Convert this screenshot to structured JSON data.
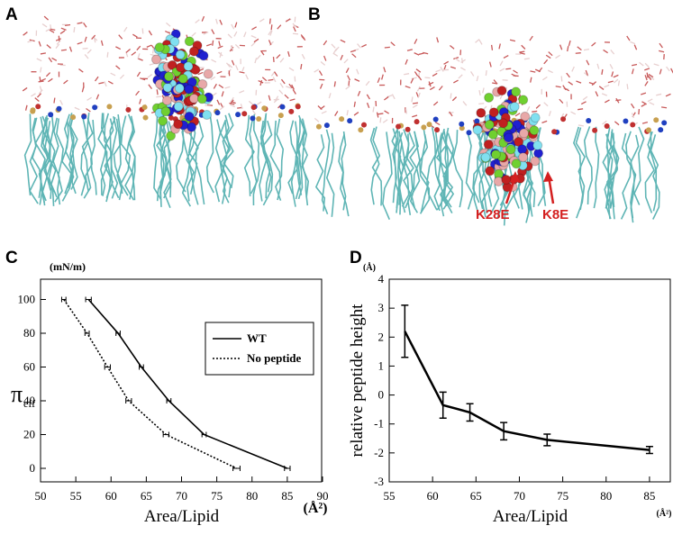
{
  "panels": {
    "a": "A",
    "b": "B",
    "c": "C",
    "d": "D"
  },
  "annotations": [
    "K28E",
    "K8E"
  ],
  "chart_data": [
    {
      "type": "line",
      "ylabel": "π",
      "ylabel_sub": "eff",
      "yunit": "(mN/m)",
      "xlabel": "Area/Lipid",
      "xunit": "(Å²)",
      "xlim": [
        50,
        90
      ],
      "xticks": [
        50,
        55,
        60,
        65,
        70,
        75,
        80,
        85,
        90
      ],
      "ylim": [
        -8,
        112
      ],
      "yticks": [
        0,
        20,
        40,
        60,
        80,
        100
      ],
      "legend": "upper right",
      "series": [
        {
          "name": "WT",
          "color": "#000000",
          "style": "solid",
          "x": [
            56.8,
            61,
            64.3,
            68.2,
            73.2,
            85
          ],
          "values": [
            100,
            80,
            60,
            40,
            20,
            0
          ],
          "xerr": [
            0.4,
            0.3,
            0.3,
            0.3,
            0.3,
            0.4
          ]
        },
        {
          "name": "No peptide",
          "color": "#000000",
          "style": "dotted",
          "x": [
            53.3,
            56.6,
            59.5,
            62.5,
            67.8,
            77.8
          ],
          "values": [
            100,
            80,
            60,
            40,
            20,
            0
          ],
          "xerr": [
            0.3,
            0.3,
            0.4,
            0.4,
            0.4,
            0.5
          ]
        }
      ]
    },
    {
      "type": "line",
      "ylabel": "relative peptide height",
      "yunit": "(Å)",
      "xlabel": "Area/Lipid",
      "xunit": "(Å²)",
      "xlim": [
        55,
        87.5
      ],
      "xticks": [
        55,
        60,
        65,
        70,
        75,
        80,
        85
      ],
      "ylim": [
        -3,
        4
      ],
      "yticks": [
        -3,
        -2,
        -1,
        0,
        1,
        2,
        3,
        4
      ],
      "series": [
        {
          "color": "#000000",
          "style": "solid",
          "x": [
            56.8,
            61.2,
            64.3,
            68.2,
            73.2,
            85
          ],
          "values": [
            2.2,
            -0.35,
            -0.6,
            -1.25,
            -1.55,
            -1.9
          ],
          "yerr": [
            0.9,
            0.45,
            0.3,
            0.3,
            0.2,
            0.12
          ]
        }
      ]
    }
  ]
}
